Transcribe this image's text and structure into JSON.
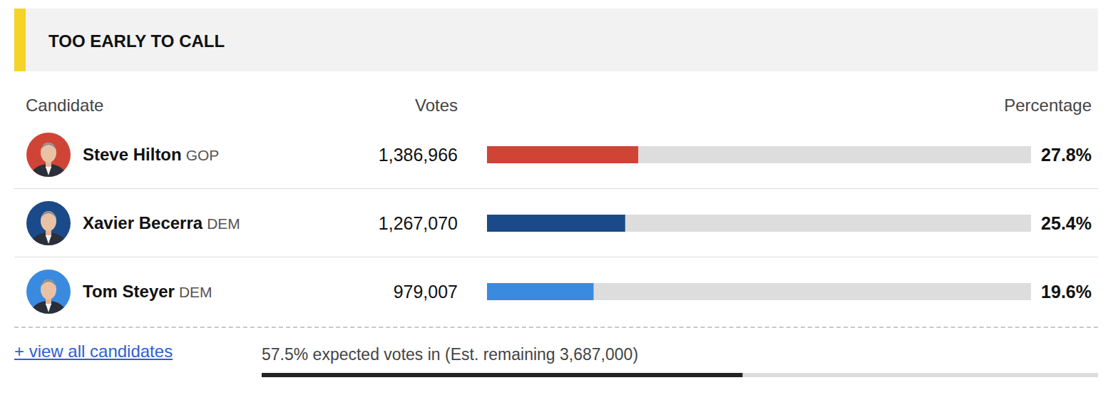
{
  "chart_data": {
    "type": "bar",
    "orientation": "horizontal",
    "title": "TOO EARLY TO CALL",
    "column_headers": [
      "Candidate",
      "Votes",
      "Percentage"
    ],
    "categories": [
      "Steve Hilton",
      "Xavier Becerra",
      "Tom Steyer"
    ],
    "parties": [
      "GOP",
      "DEM",
      "DEM"
    ],
    "votes": [
      "1,386,966",
      "1,267,070",
      "979,007"
    ],
    "values": [
      27.8,
      25.4,
      19.6
    ],
    "value_labels": [
      "27.8%",
      "25.4%",
      "19.6%"
    ],
    "colors": [
      "#d04436",
      "#1a4a8a",
      "#3a8be0"
    ],
    "xlim": [
      0,
      100
    ],
    "tick_labels": false,
    "grid": false,
    "data_labels": true,
    "link_text": "+ view all candidates",
    "progress": {
      "value": 57.5,
      "label": "57.5% expected votes in (Est. remaining 3,687,000)"
    }
  }
}
